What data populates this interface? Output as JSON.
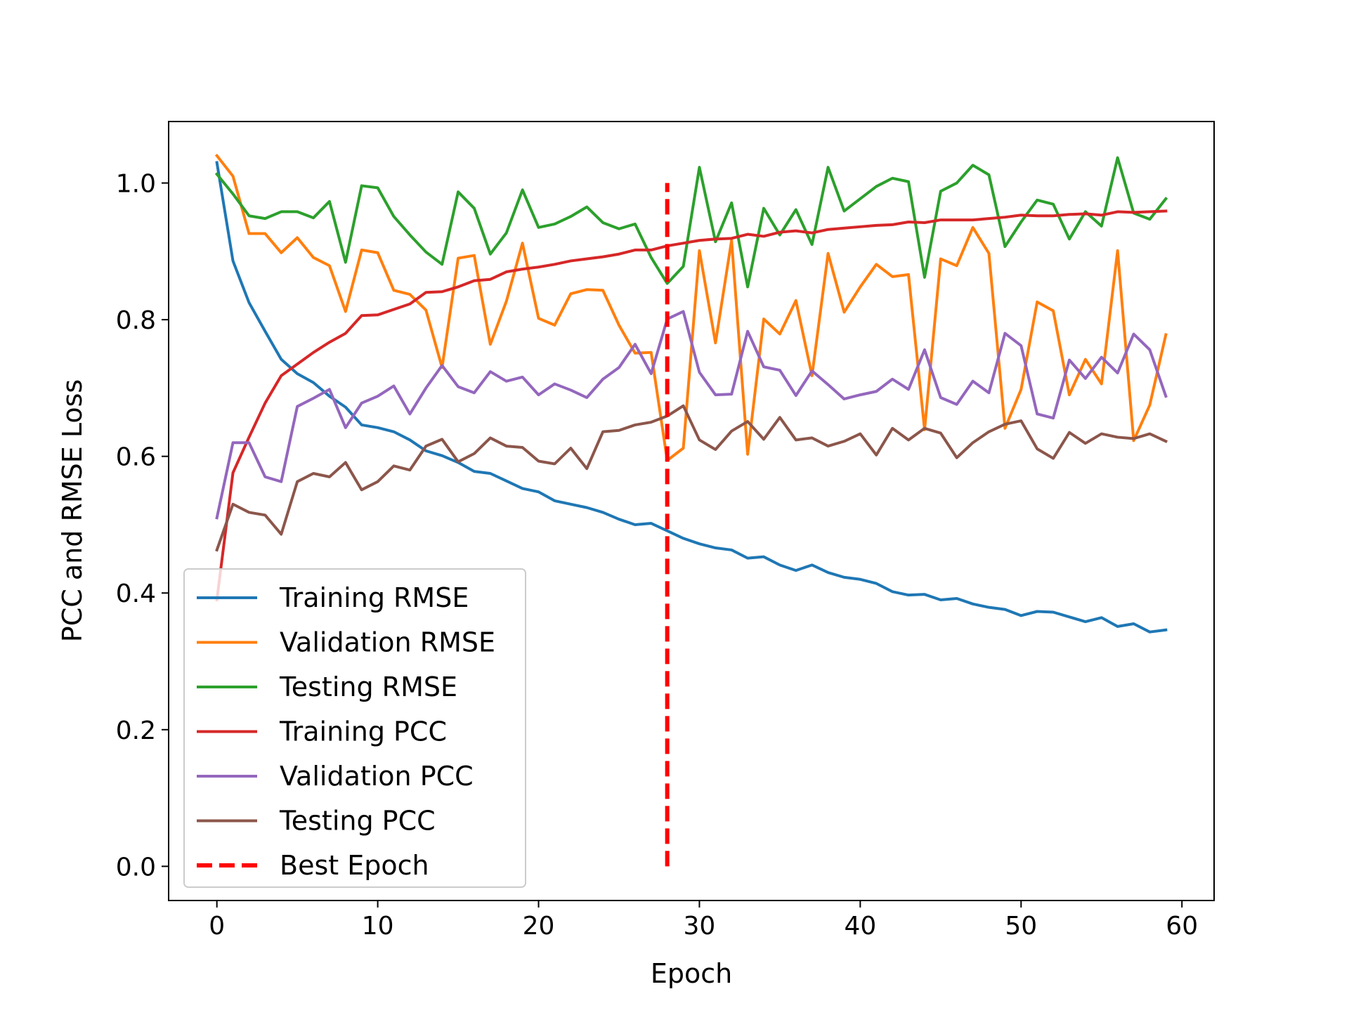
{
  "chart_data": {
    "type": "line",
    "title": "",
    "xlabel": "Epoch",
    "ylabel": "PCC and RMSE Loss",
    "xlim": [
      -3,
      62
    ],
    "ylim": [
      -0.05,
      1.09
    ],
    "xticks": [
      0,
      10,
      20,
      30,
      40,
      50,
      60
    ],
    "yticks": [
      0.0,
      0.2,
      0.4,
      0.6,
      0.8,
      1.0
    ],
    "xtick_labels": [
      "0",
      "10",
      "20",
      "30",
      "40",
      "50",
      "60"
    ],
    "ytick_labels": [
      "0.0",
      "0.2",
      "0.4",
      "0.6",
      "0.8",
      "1.0"
    ],
    "legend_position": "lower-left",
    "series": [
      {
        "name": "Training RMSE",
        "color": "#1f77b4",
        "values": [
          1.03,
          0.886,
          0.825,
          0.783,
          0.742,
          0.721,
          0.708,
          0.688,
          0.672,
          0.646,
          0.642,
          0.636,
          0.624,
          0.608,
          0.601,
          0.591,
          0.578,
          0.575,
          0.564,
          0.553,
          0.548,
          0.535,
          0.53,
          0.525,
          0.518,
          0.508,
          0.5,
          0.502,
          0.491,
          0.48,
          0.472,
          0.466,
          0.463,
          0.451,
          0.453,
          0.441,
          0.433,
          0.441,
          0.43,
          0.423,
          0.42,
          0.414,
          0.402,
          0.397,
          0.398,
          0.39,
          0.392,
          0.384,
          0.379,
          0.376,
          0.367,
          0.373,
          0.372,
          0.365,
          0.358,
          0.364,
          0.351,
          0.355,
          0.343,
          0.346
        ]
      },
      {
        "name": "Validation RMSE",
        "color": "#ff7f0e",
        "values": [
          1.04,
          1.01,
          0.926,
          0.926,
          0.898,
          0.92,
          0.891,
          0.879,
          0.812,
          0.902,
          0.898,
          0.843,
          0.837,
          0.814,
          0.73,
          0.89,
          0.894,
          0.764,
          0.827,
          0.912,
          0.802,
          0.792,
          0.838,
          0.844,
          0.843,
          0.792,
          0.751,
          0.752,
          0.594,
          0.612,
          0.901,
          0.766,
          0.916,
          0.603,
          0.801,
          0.779,
          0.828,
          0.718,
          0.897,
          0.811,
          0.848,
          0.881,
          0.863,
          0.866,
          0.639,
          0.889,
          0.879,
          0.935,
          0.897,
          0.641,
          0.698,
          0.826,
          0.813,
          0.69,
          0.742,
          0.706,
          0.901,
          0.623,
          0.675,
          0.778
        ]
      },
      {
        "name": "Testing RMSE",
        "color": "#2ca02c",
        "values": [
          1.013,
          0.984,
          0.952,
          0.948,
          0.958,
          0.958,
          0.949,
          0.973,
          0.884,
          0.996,
          0.993,
          0.951,
          0.924,
          0.899,
          0.881,
          0.987,
          0.963,
          0.896,
          0.927,
          0.99,
          0.935,
          0.94,
          0.951,
          0.965,
          0.942,
          0.933,
          0.94,
          0.891,
          0.853,
          0.878,
          1.023,
          0.914,
          0.971,
          0.848,
          0.963,
          0.924,
          0.961,
          0.91,
          1.023,
          0.959,
          0.977,
          0.995,
          1.007,
          1.002,
          0.862,
          0.988,
          1.0,
          1.026,
          1.012,
          0.907,
          0.943,
          0.975,
          0.969,
          0.918,
          0.958,
          0.937,
          1.037,
          0.956,
          0.947,
          0.977
        ]
      },
      {
        "name": "Training PCC",
        "color": "#d62728",
        "values": [
          0.39,
          0.576,
          0.628,
          0.678,
          0.718,
          0.735,
          0.752,
          0.767,
          0.78,
          0.806,
          0.807,
          0.815,
          0.823,
          0.84,
          0.841,
          0.848,
          0.857,
          0.859,
          0.87,
          0.874,
          0.877,
          0.881,
          0.886,
          0.889,
          0.892,
          0.896,
          0.902,
          0.902,
          0.908,
          0.912,
          0.916,
          0.918,
          0.919,
          0.925,
          0.922,
          0.928,
          0.93,
          0.927,
          0.932,
          0.934,
          0.936,
          0.938,
          0.939,
          0.943,
          0.942,
          0.946,
          0.946,
          0.946,
          0.948,
          0.95,
          0.953,
          0.952,
          0.952,
          0.954,
          0.955,
          0.953,
          0.958,
          0.957,
          0.958,
          0.959
        ]
      },
      {
        "name": "Validation PCC",
        "color": "#9467bd",
        "values": [
          0.51,
          0.62,
          0.62,
          0.57,
          0.563,
          0.673,
          0.685,
          0.698,
          0.642,
          0.678,
          0.688,
          0.703,
          0.662,
          0.7,
          0.733,
          0.702,
          0.693,
          0.724,
          0.71,
          0.716,
          0.69,
          0.706,
          0.697,
          0.686,
          0.713,
          0.73,
          0.764,
          0.721,
          0.801,
          0.812,
          0.723,
          0.69,
          0.691,
          0.783,
          0.731,
          0.726,
          0.689,
          0.725,
          0.705,
          0.684,
          0.69,
          0.695,
          0.713,
          0.698,
          0.756,
          0.686,
          0.676,
          0.71,
          0.693,
          0.78,
          0.762,
          0.662,
          0.656,
          0.741,
          0.714,
          0.745,
          0.722,
          0.779,
          0.756,
          0.688
        ]
      },
      {
        "name": "Testing PCC",
        "color": "#8c564b",
        "values": [
          0.463,
          0.53,
          0.518,
          0.514,
          0.486,
          0.563,
          0.575,
          0.57,
          0.591,
          0.551,
          0.563,
          0.586,
          0.58,
          0.615,
          0.625,
          0.592,
          0.604,
          0.627,
          0.615,
          0.613,
          0.593,
          0.589,
          0.612,
          0.582,
          0.636,
          0.638,
          0.646,
          0.65,
          0.659,
          0.674,
          0.624,
          0.61,
          0.637,
          0.651,
          0.625,
          0.657,
          0.624,
          0.627,
          0.615,
          0.622,
          0.633,
          0.602,
          0.641,
          0.624,
          0.641,
          0.634,
          0.598,
          0.62,
          0.636,
          0.647,
          0.652,
          0.611,
          0.597,
          0.635,
          0.619,
          0.633,
          0.628,
          0.626,
          0.633,
          0.622
        ]
      }
    ],
    "vline": {
      "name": "Best Epoch",
      "color": "#ff0000",
      "x": 28,
      "y_range": [
        0.0,
        1.0
      ],
      "style": "dashed"
    }
  }
}
